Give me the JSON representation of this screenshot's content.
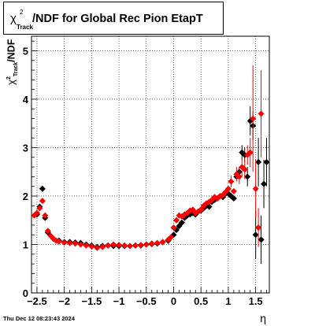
{
  "title": {
    "symbol": "χ",
    "superscript": "2",
    "subscript": "Track",
    "text": "/NDF for Global Rec Pion EtapT"
  },
  "axis_labels": {
    "x": "η",
    "y_symbol": "χ",
    "y_superscript": "2",
    "y_subscript": "Track",
    "y_text": "/NDF"
  },
  "footer": "Thu Dec 12 08:23:43 2024",
  "colors": {
    "series_black": "#000000",
    "series_red": "#ff0000",
    "grid": "#000000"
  },
  "chart_data": {
    "type": "scatter",
    "xlim": [
      -2.6,
      1.75
    ],
    "ylim": [
      0,
      5.3
    ],
    "grid": true,
    "x_ticks": [
      -2.5,
      -2,
      -1.5,
      -1,
      -0.5,
      0,
      0.5,
      1,
      1.5
    ],
    "x_tick_labels": [
      "−2.5",
      "−2",
      "−1.5",
      "−1",
      "−0.5",
      "0",
      "0.5",
      "1",
      "1.5"
    ],
    "y_ticks": [
      0,
      1,
      2,
      3,
      4,
      5
    ],
    "y_tick_labels": [
      "0",
      "1",
      "2",
      "3",
      "4",
      "5"
    ],
    "series": [
      {
        "color": "black",
        "points": [
          [
            -2.5,
            1.62
          ],
          [
            -2.45,
            1.78
          ],
          [
            -2.4,
            2.15
          ],
          [
            -2.35,
            1.55
          ],
          [
            -2.3,
            1.25
          ],
          [
            -2.2,
            1.12
          ],
          [
            -2.1,
            1.08
          ],
          [
            -2.0,
            1.05
          ],
          [
            -1.9,
            1.05
          ],
          [
            -1.8,
            1.04
          ],
          [
            -1.7,
            1.03
          ],
          [
            -1.6,
            1.0
          ],
          [
            -1.5,
            0.98
          ],
          [
            -1.4,
            0.95
          ],
          [
            -1.3,
            0.97
          ],
          [
            -1.2,
            0.98
          ],
          [
            -1.1,
            0.97
          ],
          [
            -1.0,
            0.97
          ],
          [
            -0.9,
            0.97
          ],
          [
            -0.8,
            0.97
          ],
          [
            -0.7,
            0.98
          ],
          [
            -0.6,
            0.98
          ],
          [
            -0.5,
            1.0
          ],
          [
            -0.4,
            1.01
          ],
          [
            -0.3,
            1.02
          ],
          [
            -0.2,
            1.05
          ],
          [
            -0.1,
            1.08
          ],
          [
            0.0,
            1.2
          ],
          [
            0.05,
            1.3
          ],
          [
            0.1,
            1.38
          ],
          [
            0.15,
            1.45
          ],
          [
            0.2,
            1.55
          ],
          [
            0.25,
            1.6
          ],
          [
            0.3,
            1.62
          ],
          [
            0.35,
            1.65
          ],
          [
            0.4,
            1.62
          ],
          [
            0.45,
            1.68
          ],
          [
            0.5,
            1.7
          ],
          [
            0.55,
            1.75
          ],
          [
            0.6,
            1.8
          ],
          [
            0.65,
            1.78
          ],
          [
            0.7,
            1.88
          ],
          [
            0.75,
            1.92
          ],
          [
            0.8,
            1.95
          ],
          [
            0.85,
            2.0
          ],
          [
            0.9,
            1.98
          ],
          [
            0.95,
            2.05
          ],
          [
            1.0,
            2.05
          ],
          [
            1.05,
            2.0
          ],
          [
            1.1,
            1.95
          ],
          [
            1.15,
            2.4
          ],
          [
            1.2,
            2.5
          ],
          [
            1.25,
            2.9
          ],
          [
            1.3,
            2.85
          ],
          [
            1.35,
            2.4
          ],
          [
            1.4,
            3.55
          ],
          [
            1.45,
            3.45
          ],
          [
            1.5,
            1.2
          ],
          [
            1.55,
            2.7
          ],
          [
            1.6,
            1.1
          ],
          [
            1.65,
            2.25
          ],
          [
            1.7,
            2.7
          ]
        ],
        "errors": [
          [
            1.4,
            0.3
          ],
          [
            1.45,
            0.3
          ],
          [
            1.5,
            0.5
          ],
          [
            1.55,
            0.5
          ],
          [
            1.6,
            0.5
          ],
          [
            1.65,
            0.5
          ],
          [
            1.7,
            0.5
          ],
          [
            1.25,
            0.15
          ],
          [
            1.3,
            0.15
          ],
          [
            1.35,
            0.2
          ],
          [
            1.2,
            0.1
          ]
        ]
      },
      {
        "color": "red",
        "points": [
          [
            -2.55,
            1.6
          ],
          [
            -2.5,
            1.65
          ],
          [
            -2.45,
            1.75
          ],
          [
            -2.4,
            1.9
          ],
          [
            -2.35,
            1.6
          ],
          [
            -2.3,
            1.28
          ],
          [
            -2.25,
            1.18
          ],
          [
            -2.2,
            1.12
          ],
          [
            -2.15,
            1.08
          ],
          [
            -2.1,
            1.06
          ],
          [
            -2.0,
            1.04
          ],
          [
            -1.9,
            1.03
          ],
          [
            -1.8,
            1.02
          ],
          [
            -1.7,
            1.0
          ],
          [
            -1.6,
            0.98
          ],
          [
            -1.5,
            0.96
          ],
          [
            -1.4,
            0.93
          ],
          [
            -1.3,
            0.95
          ],
          [
            -1.2,
            0.98
          ],
          [
            -1.1,
            1.0
          ],
          [
            -1.0,
            0.99
          ],
          [
            -0.9,
            0.98
          ],
          [
            -0.8,
            0.97
          ],
          [
            -0.7,
            0.98
          ],
          [
            -0.6,
            0.99
          ],
          [
            -0.5,
            1.0
          ],
          [
            -0.4,
            1.02
          ],
          [
            -0.3,
            1.03
          ],
          [
            -0.2,
            1.05
          ],
          [
            -0.1,
            1.1
          ],
          [
            -0.05,
            1.15
          ],
          [
            0.0,
            1.35
          ],
          [
            0.05,
            1.5
          ],
          [
            0.1,
            1.6
          ],
          [
            0.15,
            1.58
          ],
          [
            0.2,
            1.62
          ],
          [
            0.25,
            1.65
          ],
          [
            0.3,
            1.7
          ],
          [
            0.35,
            1.72
          ],
          [
            0.4,
            1.65
          ],
          [
            0.45,
            1.68
          ],
          [
            0.5,
            1.72
          ],
          [
            0.55,
            1.8
          ],
          [
            0.6,
            1.85
          ],
          [
            0.65,
            1.88
          ],
          [
            0.7,
            1.92
          ],
          [
            0.75,
            1.98
          ],
          [
            0.8,
            1.95
          ],
          [
            0.85,
            2.0
          ],
          [
            0.9,
            2.02
          ],
          [
            0.95,
            2.08
          ],
          [
            1.0,
            2.15
          ],
          [
            1.05,
            2.3
          ],
          [
            1.1,
            2.1
          ],
          [
            1.15,
            2.45
          ],
          [
            1.2,
            2.4
          ],
          [
            1.25,
            2.6
          ],
          [
            1.3,
            2.55
          ],
          [
            1.35,
            2.85
          ],
          [
            1.4,
            2.9
          ],
          [
            1.45,
            3.6
          ],
          [
            1.5,
            2.15
          ],
          [
            1.55,
            1.35
          ],
          [
            1.6,
            3.7
          ]
        ],
        "errors": [
          [
            1.45,
            1.1
          ],
          [
            1.5,
            0.6
          ],
          [
            1.55,
            0.4
          ],
          [
            1.6,
            0.9
          ],
          [
            1.4,
            0.3
          ],
          [
            1.35,
            0.2
          ],
          [
            1.3,
            0.2
          ],
          [
            1.25,
            0.2
          ],
          [
            1.2,
            0.15
          ],
          [
            1.15,
            0.15
          ],
          [
            1.05,
            0.12
          ]
        ]
      }
    ]
  }
}
